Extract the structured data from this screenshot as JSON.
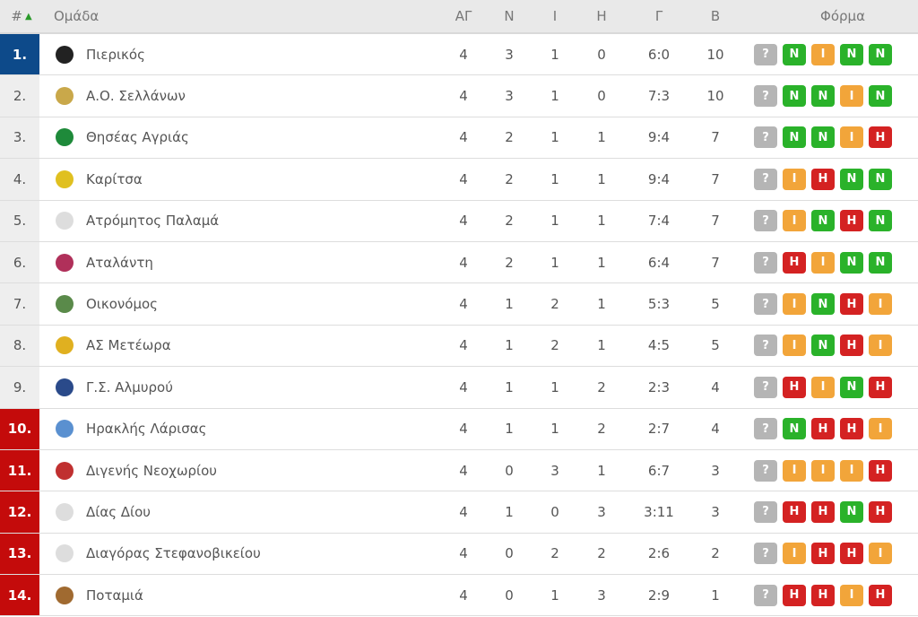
{
  "header": {
    "rank": "#",
    "sort_icon": "triangle-up",
    "team": "Ομάδα",
    "played": "ΑΓ",
    "wins": "Ν",
    "draws": "Ι",
    "losses": "Η",
    "goals": "Γ",
    "points": "Β",
    "form": "Φόρμα"
  },
  "colors": {
    "leader": "#0d4a8a",
    "relegation": "#c40b0b",
    "win": "#2ab22a",
    "draw": "#f2a53a",
    "loss": "#d42222",
    "unknown": "#b5b5b5"
  },
  "rows": [
    {
      "rank": "1.",
      "team": "Πιερικός",
      "p": "4",
      "w": "3",
      "d": "1",
      "l": "0",
      "g": "6:0",
      "pts": "10",
      "form": [
        "?",
        "N",
        "I",
        "N",
        "N"
      ],
      "logo": "#222"
    },
    {
      "rank": "2.",
      "team": "Α.Ο. Σελλάνων",
      "p": "4",
      "w": "3",
      "d": "1",
      "l": "0",
      "g": "7:3",
      "pts": "10",
      "form": [
        "?",
        "N",
        "N",
        "I",
        "N"
      ],
      "logo": "#c9a84a"
    },
    {
      "rank": "3.",
      "team": "Θησέας Αγριάς",
      "p": "4",
      "w": "2",
      "d": "1",
      "l": "1",
      "g": "9:4",
      "pts": "7",
      "form": [
        "?",
        "N",
        "N",
        "I",
        "H"
      ],
      "logo": "#1e8a3a"
    },
    {
      "rank": "4.",
      "team": "Καρίτσα",
      "p": "4",
      "w": "2",
      "d": "1",
      "l": "1",
      "g": "9:4",
      "pts": "7",
      "form": [
        "?",
        "I",
        "H",
        "N",
        "N"
      ],
      "logo": "#e0c020"
    },
    {
      "rank": "5.",
      "team": "Ατρόμητος Παλαμά",
      "p": "4",
      "w": "2",
      "d": "1",
      "l": "1",
      "g": "7:4",
      "pts": "7",
      "form": [
        "?",
        "I",
        "N",
        "H",
        "N"
      ],
      "logo": "#ddd"
    },
    {
      "rank": "6.",
      "team": "Αταλάντη",
      "p": "4",
      "w": "2",
      "d": "1",
      "l": "1",
      "g": "6:4",
      "pts": "7",
      "form": [
        "?",
        "H",
        "I",
        "N",
        "N"
      ],
      "logo": "#b0305a"
    },
    {
      "rank": "7.",
      "team": "Οικονόμος",
      "p": "4",
      "w": "1",
      "d": "2",
      "l": "1",
      "g": "5:3",
      "pts": "5",
      "form": [
        "?",
        "I",
        "N",
        "H",
        "I"
      ],
      "logo": "#5a8a4a"
    },
    {
      "rank": "8.",
      "team": "ΑΣ Μετέωρα",
      "p": "4",
      "w": "1",
      "d": "2",
      "l": "1",
      "g": "4:5",
      "pts": "5",
      "form": [
        "?",
        "I",
        "N",
        "H",
        "I"
      ],
      "logo": "#e0b020"
    },
    {
      "rank": "9.",
      "team": "Γ.Σ. Αλμυρού",
      "p": "4",
      "w": "1",
      "d": "1",
      "l": "2",
      "g": "2:3",
      "pts": "4",
      "form": [
        "?",
        "H",
        "I",
        "N",
        "H"
      ],
      "logo": "#2a4a8a"
    },
    {
      "rank": "10.",
      "team": "Ηρακλής Λάρισας",
      "p": "4",
      "w": "1",
      "d": "1",
      "l": "2",
      "g": "2:7",
      "pts": "4",
      "form": [
        "?",
        "N",
        "H",
        "H",
        "I"
      ],
      "logo": "#5a90d0"
    },
    {
      "rank": "11.",
      "team": "Διγενής Νεοχωρίου",
      "p": "4",
      "w": "0",
      "d": "3",
      "l": "1",
      "g": "6:7",
      "pts": "3",
      "form": [
        "?",
        "I",
        "I",
        "I",
        "H"
      ],
      "logo": "#c03030"
    },
    {
      "rank": "12.",
      "team": "Δίας Δίου",
      "p": "4",
      "w": "1",
      "d": "0",
      "l": "3",
      "g": "3:11",
      "pts": "3",
      "form": [
        "?",
        "H",
        "H",
        "N",
        "H"
      ],
      "logo": "#ddd"
    },
    {
      "rank": "13.",
      "team": "Διαγόρας Στεφανοβικείου",
      "p": "4",
      "w": "0",
      "d": "2",
      "l": "2",
      "g": "2:6",
      "pts": "2",
      "form": [
        "?",
        "I",
        "H",
        "H",
        "I"
      ],
      "logo": "#ddd"
    },
    {
      "rank": "14.",
      "team": "Ποταμιά",
      "p": "4",
      "w": "0",
      "d": "1",
      "l": "3",
      "g": "2:9",
      "pts": "1",
      "form": [
        "?",
        "H",
        "H",
        "I",
        "H"
      ],
      "logo": "#a06a30"
    }
  ]
}
